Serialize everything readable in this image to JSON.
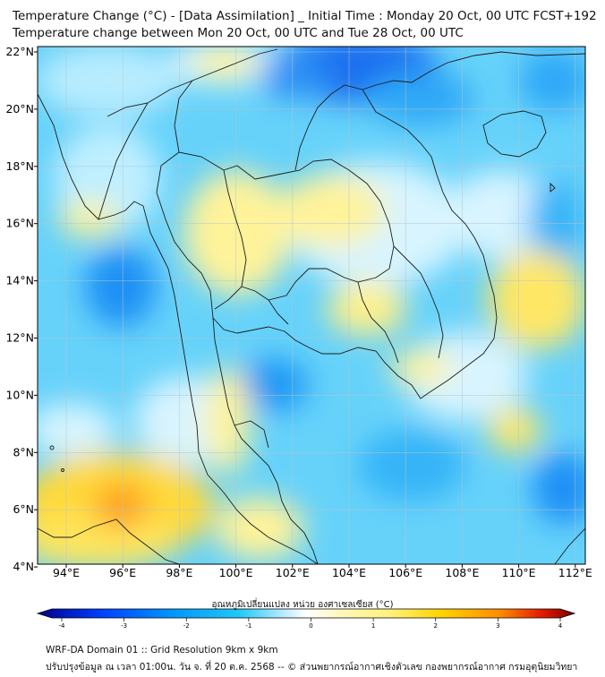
{
  "title_line1": "Temperature Change (°C) - [Data Assimilation] _ Initial Time : Monday 20 Oct, 00 UTC FCST+192",
  "title_line2": "Temperature change between Mon 20 Oct, 00 UTC and Tue 28 Oct, 00 UTC",
  "lat_labels": [
    "22°N",
    "20°N",
    "18°N",
    "16°N",
    "14°N",
    "12°N",
    "10°N",
    "8°N",
    "6°N",
    "4°N"
  ],
  "lon_labels": [
    "94°E",
    "96°E",
    "98°E",
    "100°E",
    "102°E",
    "104°E",
    "106°E",
    "108°E",
    "110°E",
    "112°E"
  ],
  "colorbar": {
    "title": "อุณหภูมิเปลี่ยนแปลง หน่วย องศาเซลเซียส (°C)",
    "ticks": [
      "-4",
      "-3",
      "-2",
      "-1",
      "0",
      "1",
      "2",
      "3",
      "4"
    ],
    "range": [
      -4,
      4
    ],
    "colors": [
      "#00008b",
      "#0055ff",
      "#00b4ff",
      "#7fdcff",
      "#ffffff",
      "#fff59a",
      "#ffd700",
      "#ff8c00",
      "#e02000",
      "#8b0000"
    ]
  },
  "footer_line1": "WRF-DA Domain 01 :: Grid Resolution 9km x 9km",
  "footer_line2": "ปรับปรุงข้อมูล ณ เวลา 01:00น. วัน จ. ที่ 20 ต.ค. 2568 -- © ส่วนพยากรณ์อากาศเชิงตัวเลข กองพยากรณ์อากาศ กรมอุตุนิยมวิทยา"
}
